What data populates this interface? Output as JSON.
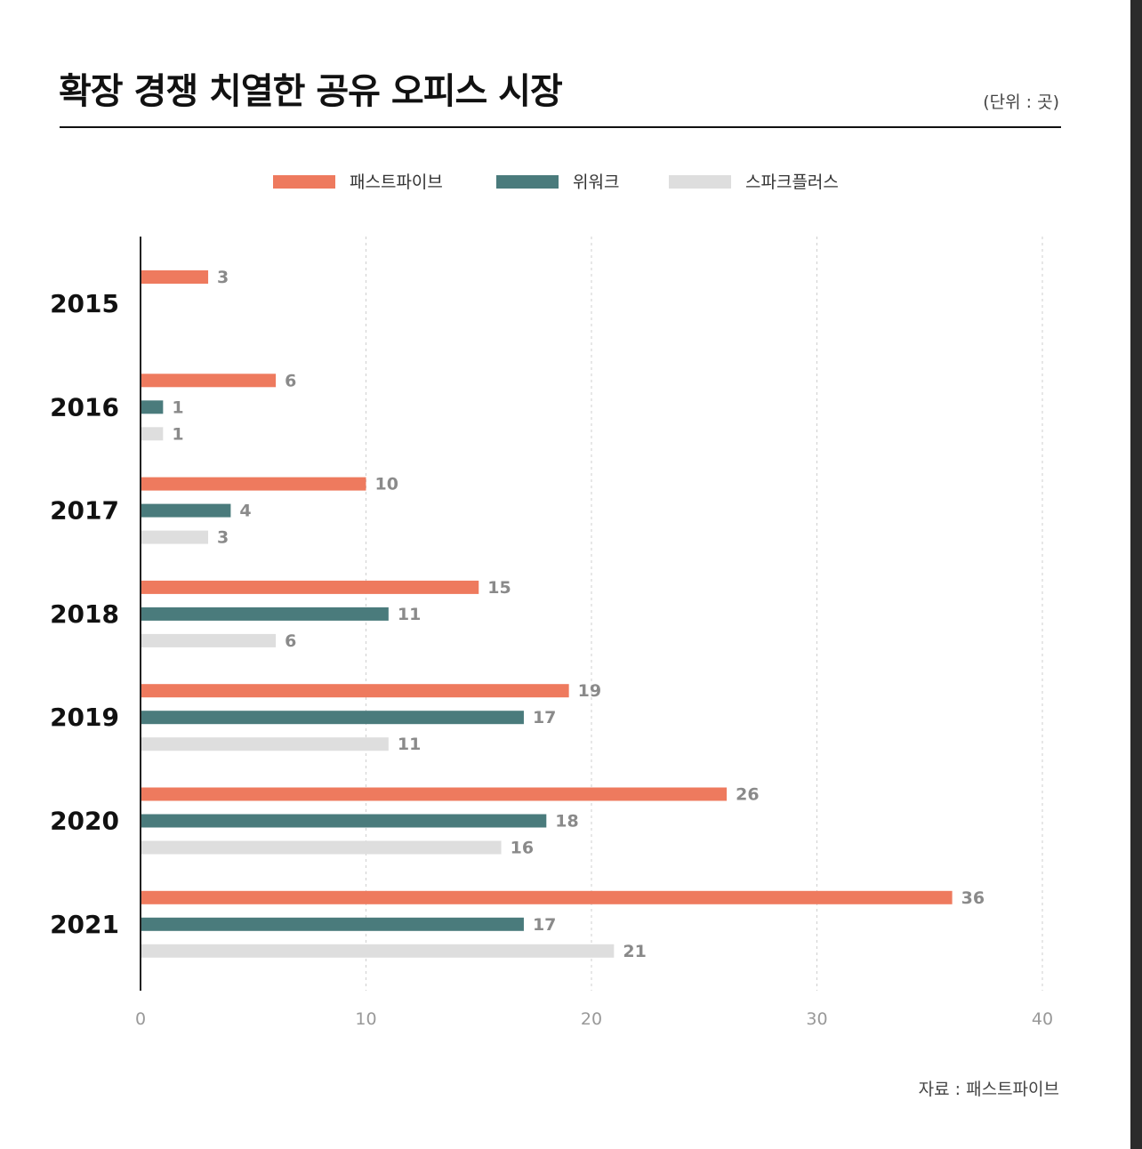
{
  "title": "확장 경쟁 치열한 공유 오피스 시장",
  "unit": "(단위 : 곳)",
  "source": "자료 : 패스트파이브",
  "chart_data": {
    "type": "bar",
    "orientation": "horizontal",
    "categories": [
      "2015",
      "2016",
      "2017",
      "2018",
      "2019",
      "2020",
      "2021"
    ],
    "series": [
      {
        "name": "패스트파이브",
        "color": "#ee7a5e",
        "values": [
          3,
          6,
          10,
          15,
          19,
          26,
          36
        ]
      },
      {
        "name": "위워크",
        "color": "#4a7b7c",
        "values": [
          null,
          1,
          4,
          11,
          17,
          18,
          17
        ]
      },
      {
        "name": "스파크플러스",
        "color": "#dedede",
        "values": [
          null,
          1,
          3,
          6,
          11,
          16,
          21
        ]
      }
    ],
    "xlim": [
      0,
      40
    ],
    "xticks": [
      0,
      10,
      20,
      30,
      40
    ],
    "grid": true,
    "legend": "top-center"
  }
}
